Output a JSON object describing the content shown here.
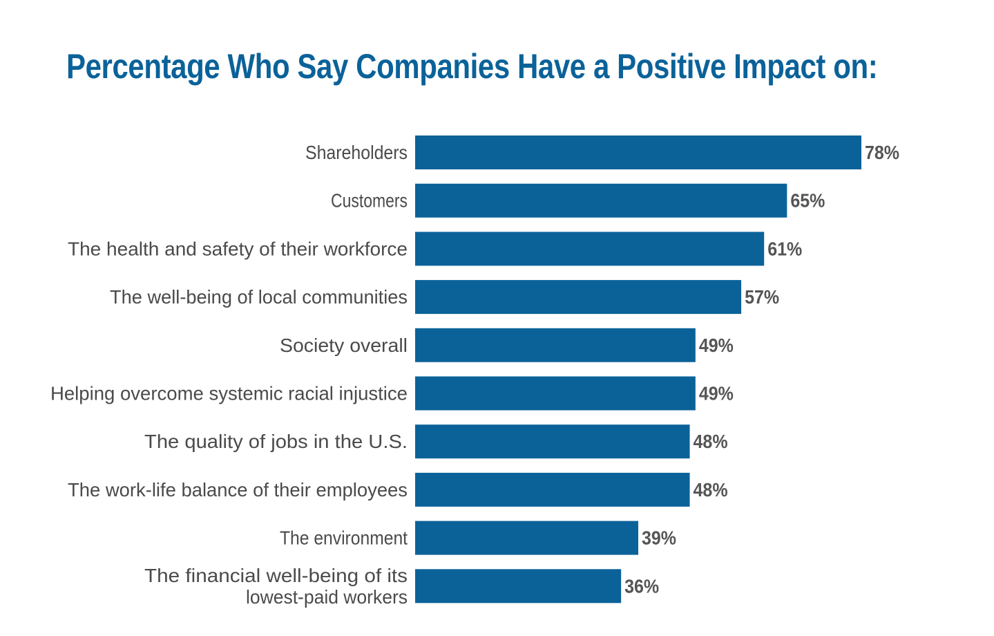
{
  "chart_data": {
    "type": "bar",
    "orientation": "horizontal",
    "title": "Percentage Who Say Companies Have a Positive Impact on:",
    "categories": [
      "Shareholders",
      "Customers",
      "The health and safety of their workforce",
      "The well-being of local communities",
      "Society overall",
      "Helping overcome systemic racial injustice",
      "The quality of jobs in the U.S.",
      "The work-life balance of their employees",
      "The environment",
      "The financial well-being of its lowest-paid workers"
    ],
    "category_lines": [
      [
        "Shareholders"
      ],
      [
        "Customers"
      ],
      [
        "The health and safety of their workforce"
      ],
      [
        "The well-being of local communities"
      ],
      [
        "Society overall"
      ],
      [
        "Helping overcome systemic racial injustice"
      ],
      [
        "The quality of jobs in the U.S."
      ],
      [
        "The work-life balance of their employees"
      ],
      [
        "The environment"
      ],
      [
        "The financial well-being of its",
        "lowest-paid workers"
      ]
    ],
    "values": [
      78,
      65,
      61,
      57,
      49,
      49,
      48,
      48,
      39,
      36
    ],
    "value_labels": [
      "78%",
      "65%",
      "61%",
      "57%",
      "49%",
      "49%",
      "48%",
      "48%",
      "39%",
      "36%"
    ],
    "xlim": [
      0,
      100
    ],
    "grid": false,
    "legend": "none",
    "bar_color": "#0b6299"
  }
}
